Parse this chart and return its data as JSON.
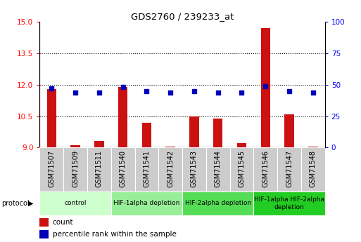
{
  "title": "GDS2760 / 239233_at",
  "samples": [
    "GSM71507",
    "GSM71509",
    "GSM71511",
    "GSM71540",
    "GSM71541",
    "GSM71542",
    "GSM71543",
    "GSM71544",
    "GSM71545",
    "GSM71546",
    "GSM71547",
    "GSM71548"
  ],
  "red_values": [
    11.8,
    9.1,
    9.3,
    11.9,
    10.2,
    9.05,
    10.5,
    10.4,
    9.2,
    14.7,
    10.6,
    9.05
  ],
  "blue_values": [
    47,
    44,
    44,
    48,
    45,
    44,
    45,
    44,
    44,
    49,
    45,
    44
  ],
  "ylim_left": [
    9,
    15
  ],
  "ylim_right": [
    0,
    100
  ],
  "yticks_left": [
    9,
    10.5,
    12,
    13.5,
    15
  ],
  "yticks_right": [
    0,
    25,
    50,
    75,
    100
  ],
  "grid_values": [
    10.5,
    12,
    13.5
  ],
  "protocol_groups": [
    {
      "label": "control",
      "start": 0,
      "end": 3,
      "color": "#ccffcc"
    },
    {
      "label": "HIF-1alpha depletion",
      "start": 3,
      "end": 6,
      "color": "#99ee99"
    },
    {
      "label": "HIF-2alpha depletion",
      "start": 6,
      "end": 9,
      "color": "#55dd55"
    },
    {
      "label": "HIF-1alpha HIF-2alpha\ndepletion",
      "start": 9,
      "end": 12,
      "color": "#22cc22"
    }
  ],
  "bar_color": "#cc1111",
  "dot_color": "#0000bb",
  "bar_width": 0.4,
  "dot_size": 25,
  "tick_bg_color": "#cccccc"
}
